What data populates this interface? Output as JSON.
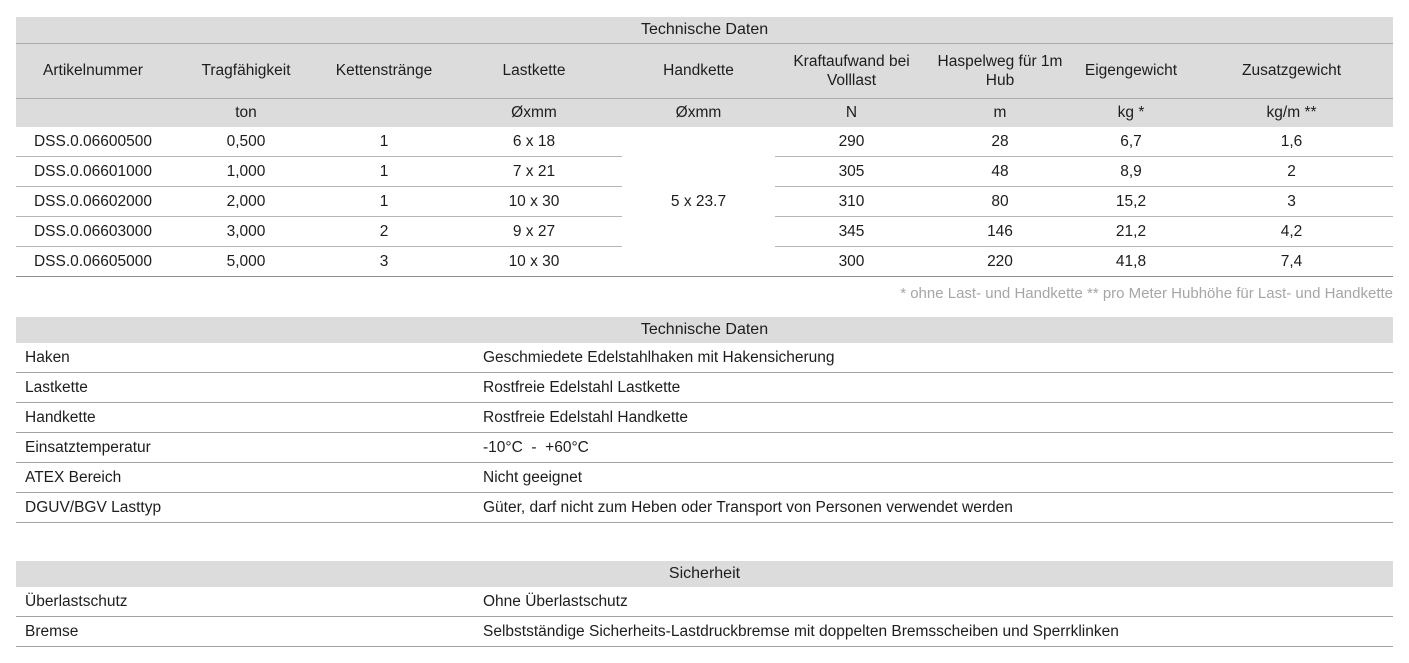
{
  "colors": {
    "band_bg": "#dcdcdc",
    "band_divider": "#ababab",
    "row_divider": "#b5b5b5",
    "table_bottom": "#8f8f8f",
    "kv_divider": "#a3a3a3",
    "text": "#1d1d1b",
    "footnote": "#a6a6a6"
  },
  "spec_table": {
    "title": "Technische Daten",
    "columns": [
      "Artikelnummer",
      "Tragfähigkeit",
      "Kettenstränge",
      "Lastkette",
      "Handkette",
      "Kraftaufwand bei Volllast",
      "Haspelweg für 1m Hub",
      "Eigengewicht",
      "Zusatzgewicht"
    ],
    "units": [
      "",
      "ton",
      "",
      "Øxmm",
      "Øxmm",
      "N",
      "m",
      "kg *",
      "kg/m **"
    ],
    "handkette_merged_value": "5 x 23.7",
    "rows": [
      [
        "DSS.0.06600500",
        "0,500",
        "1",
        "6 x 18",
        "290",
        "28",
        "6,7",
        "1,6"
      ],
      [
        "DSS.0.06601000",
        "1,000",
        "1",
        "7 x 21",
        "305",
        "48",
        "8,9",
        "2"
      ],
      [
        "DSS.0.06602000",
        "2,000",
        "1",
        "10 x 30",
        "310",
        "80",
        "15,2",
        "3"
      ],
      [
        "DSS.0.06603000",
        "3,000",
        "2",
        "9 x 27",
        "345",
        "146",
        "21,2",
        "4,2"
      ],
      [
        "DSS.0.06605000",
        "5,000",
        "3",
        "10 x 30",
        "300",
        "220",
        "41,8",
        "7,4"
      ]
    ],
    "footnote": "* ohne Last- und Handkette ** pro Meter Hubhöhe für Last- und Handkette"
  },
  "details_table": {
    "title": "Technische Daten",
    "rows": [
      {
        "label": "Haken",
        "value": "Geschmiedete Edelstahlhaken mit Hakensicherung"
      },
      {
        "label": "Lastkette",
        "value": "Rostfreie Edelstahl Lastkette"
      },
      {
        "label": "Handkette",
        "value": "Rostfreie Edelstahl Handkette"
      },
      {
        "label": "Einsatztemperatur",
        "value": "-10°C  -  +60°C"
      },
      {
        "label": "ATEX Bereich",
        "value": "Nicht geeignet"
      },
      {
        "label": "DGUV/BGV Lasttyp",
        "value": "Güter, darf nicht zum Heben oder Transport von Personen verwendet werden"
      }
    ]
  },
  "safety_table": {
    "title": "Sicherheit",
    "rows": [
      {
        "label": "Überlastschutz",
        "value": "Ohne Überlastschutz"
      },
      {
        "label": "Bremse",
        "value": "Selbstständige Sicherheits-Lastdruckbremse mit doppelten Bremsscheiben und Sperrklinken"
      }
    ]
  }
}
